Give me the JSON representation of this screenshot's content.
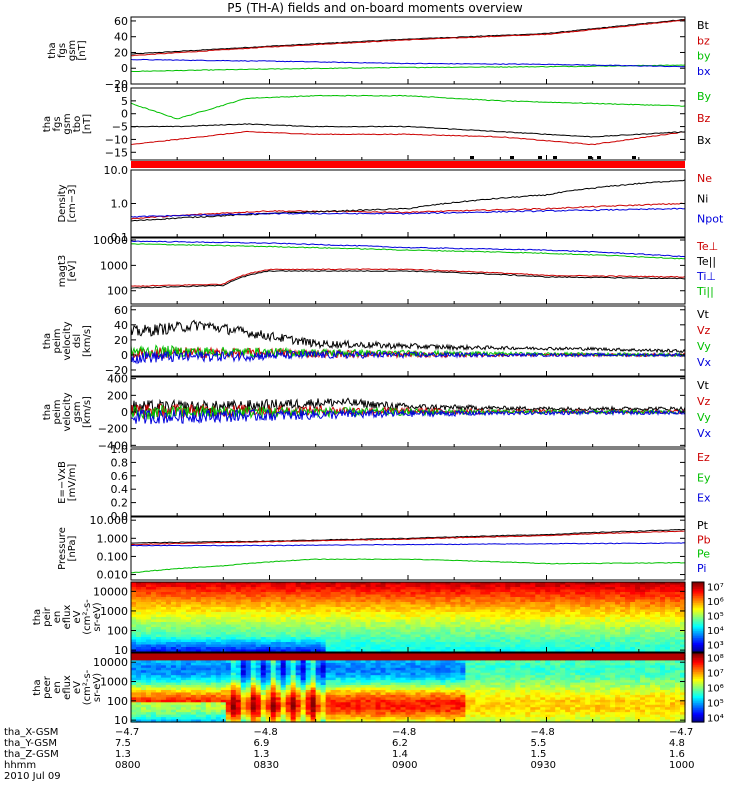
{
  "title": "P5 (TH-A) fields and on-board moments overview",
  "chart_data": {
    "type": "line",
    "x_ticks": [
      "0800",
      "0830",
      "0900",
      "0930",
      "1000"
    ],
    "x_range": [
      "08:00",
      "10:00"
    ],
    "panels": [
      {
        "id": "fgs-gsm",
        "type": "line",
        "ylabel": [
          "tha",
          "fgs",
          "gsm",
          "[nT]"
        ],
        "ylim": [
          -20,
          65
        ],
        "yticks": [
          "60",
          "40",
          "20",
          "0",
          "−20"
        ],
        "ytick_values": [
          60,
          40,
          20,
          0,
          -20
        ],
        "log": false,
        "series": [
          {
            "name": "Bt",
            "color": "#000000",
            "x": [
              0,
              30,
              60,
              90,
              120
            ],
            "values": [
              18,
              28,
              37,
              44,
              62
            ]
          },
          {
            "name": "bz",
            "color": "#cc0000",
            "x": [
              0,
              30,
              60,
              90,
              120
            ],
            "values": [
              16,
              27,
              36,
              43,
              61
            ]
          },
          {
            "name": "by",
            "color": "#00c000",
            "x": [
              0,
              30,
              60,
              90,
              120
            ],
            "values": [
              -4,
              -1,
              1,
              2,
              4
            ]
          },
          {
            "name": "bx",
            "color": "#0000dd",
            "x": [
              0,
              30,
              60,
              90,
              120
            ],
            "values": [
              11,
              9,
              6,
              5,
              2
            ]
          }
        ]
      },
      {
        "id": "fgs-gsm-tbo",
        "type": "line",
        "ylabel": [
          "tha",
          "fgs",
          "gsm",
          "tbo",
          "[nT]"
        ],
        "ylim": [
          -18,
          10
        ],
        "yticks": [
          "10",
          "5",
          "0",
          "−5",
          "−10",
          "−15"
        ],
        "ytick_values": [
          10,
          5,
          0,
          -5,
          -10,
          -15
        ],
        "log": false,
        "series": [
          {
            "name": "By",
            "color": "#00c000",
            "x": [
              0,
              10,
              25,
              40,
              60,
              80,
              100,
              120
            ],
            "values": [
              4,
              -2,
              6,
              7,
              7,
              5,
              4,
              3
            ]
          },
          {
            "name": "Bz",
            "color": "#cc0000",
            "x": [
              0,
              10,
              25,
              40,
              60,
              80,
              100,
              120
            ],
            "values": [
              -12,
              -10,
              -7,
              -8,
              -8,
              -9,
              -12,
              -7
            ]
          },
          {
            "name": "Bx",
            "color": "#000000",
            "x": [
              0,
              10,
              25,
              40,
              60,
              80,
              100,
              120
            ],
            "values": [
              -5,
              -5,
              -4,
              -5,
              -5,
              -7,
              -9,
              -7
            ]
          }
        ]
      },
      {
        "id": "density",
        "type": "line",
        "ylabel": [
          "Density",
          "[cm−3]"
        ],
        "ylim": [
          0.1,
          10
        ],
        "yticks": [
          "10.0",
          "1.0",
          "0.1"
        ],
        "ytick_values": [
          10,
          1,
          0.1
        ],
        "log": true,
        "series": [
          {
            "name": "Ne",
            "color": "#cc0000",
            "x": [
              0,
              30,
              60,
              90,
              120
            ],
            "values": [
              0.35,
              0.6,
              0.55,
              0.7,
              1.0
            ]
          },
          {
            "name": "Ni",
            "color": "#000000",
            "x": [
              0,
              30,
              60,
              90,
              120
            ],
            "values": [
              0.3,
              0.5,
              0.7,
              1.8,
              5.0
            ]
          },
          {
            "name": "Npot",
            "color": "#0000dd",
            "x": [
              0,
              30,
              60,
              90,
              120
            ],
            "values": [
              0.4,
              0.5,
              0.5,
              0.6,
              0.7
            ]
          }
        ]
      },
      {
        "id": "temperature",
        "type": "line",
        "ylabel": [
          "magt3",
          "[eV]"
        ],
        "ylim": [
          30,
          12000
        ],
        "yticks": [
          "10000",
          "1000",
          "100"
        ],
        "ytick_values": [
          10000,
          1000,
          100
        ],
        "log": true,
        "series": [
          {
            "name": "Te⊥",
            "color": "#cc0000",
            "x": [
              0,
              20,
              30,
              60,
              90,
              120
            ],
            "values": [
              150,
              180,
              700,
              700,
              400,
              350
            ]
          },
          {
            "name": "Te||",
            "color": "#000000",
            "x": [
              0,
              20,
              30,
              60,
              90,
              120
            ],
            "values": [
              130,
              160,
              600,
              600,
              350,
              300
            ]
          },
          {
            "name": "Ti⊥",
            "color": "#0000dd",
            "x": [
              0,
              30,
              60,
              90,
              120
            ],
            "values": [
              9000,
              7500,
              5000,
              4000,
              2200
            ]
          },
          {
            "name": "Ti||",
            "color": "#00c000",
            "x": [
              0,
              30,
              60,
              90,
              120
            ],
            "values": [
              7000,
              5500,
              4000,
              3000,
              1800
            ]
          }
        ]
      },
      {
        "id": "peim-velocity-dsl",
        "type": "line",
        "ylabel": [
          "tha",
          "peim",
          "velocity",
          "dsl",
          "[km/s]"
        ],
        "ylim": [
          -28,
          65
        ],
        "yticks": [
          "60",
          "40",
          "20",
          "0",
          "−20"
        ],
        "ytick_values": [
          60,
          40,
          20,
          0,
          -20
        ],
        "log": false,
        "series": [
          {
            "name": "Vt",
            "color": "#000000",
            "x": [
              0,
              15,
              40,
              70,
              100,
              120
            ],
            "values": [
              30,
              40,
              15,
              10,
              8,
              5
            ]
          },
          {
            "name": "Vz",
            "color": "#cc0000",
            "x": [
              0,
              15,
              40,
              70,
              100,
              120
            ],
            "values": [
              2,
              3,
              2,
              0,
              0,
              0
            ]
          },
          {
            "name": "Vy",
            "color": "#00c000",
            "x": [
              0,
              15,
              40,
              70,
              100,
              120
            ],
            "values": [
              5,
              4,
              3,
              2,
              1,
              0
            ]
          },
          {
            "name": "Vx",
            "color": "#0000dd",
            "x": [
              0,
              15,
              40,
              70,
              100,
              120
            ],
            "values": [
              -3,
              -2,
              0,
              0,
              0,
              0
            ]
          }
        ]
      },
      {
        "id": "peim-velocity-gsm",
        "type": "line",
        "ylabel": [
          "tha",
          "peim",
          "velocity",
          "gsm",
          "[km/s]"
        ],
        "ylim": [
          -420,
          420
        ],
        "yticks": [
          "400",
          "200",
          "0",
          "−200",
          "−400"
        ],
        "ytick_values": [
          400,
          200,
          0,
          -200,
          -400
        ],
        "log": false,
        "series": [
          {
            "name": "Vt",
            "color": "#000000",
            "x": [
              0,
              20,
              45,
              60,
              90,
              120
            ],
            "values": [
              50,
              60,
              120,
              60,
              40,
              40
            ]
          },
          {
            "name": "Vz",
            "color": "#cc0000",
            "x": [
              0,
              30,
              60,
              90,
              120
            ],
            "values": [
              10,
              20,
              10,
              5,
              5
            ]
          },
          {
            "name": "Vy",
            "color": "#00c000",
            "x": [
              0,
              30,
              60,
              90,
              120
            ],
            "values": [
              -10,
              0,
              0,
              0,
              0
            ]
          },
          {
            "name": "Vx",
            "color": "#0000dd",
            "x": [
              0,
              30,
              60,
              90,
              120
            ],
            "values": [
              -60,
              -40,
              -20,
              -10,
              -5
            ]
          }
        ]
      },
      {
        "id": "efield",
        "type": "line",
        "ylabel": [
          "E=−VxB",
          "[mV/m]"
        ],
        "ylim": [
          0,
          1
        ],
        "yticks": [
          "1.0",
          "0.8",
          "0.6",
          "0.4",
          "0.2",
          "0.0"
        ],
        "ytick_values": [
          1,
          0.8,
          0.6,
          0.4,
          0.2,
          0
        ],
        "log": false,
        "series": [
          {
            "name": "Ez",
            "color": "#cc0000",
            "x": [],
            "values": []
          },
          {
            "name": "Ey",
            "color": "#00c000",
            "x": [],
            "values": []
          },
          {
            "name": "Ex",
            "color": "#0000dd",
            "x": [],
            "values": []
          }
        ]
      },
      {
        "id": "pressure",
        "type": "line",
        "ylabel": [
          "Pressure",
          "[nPa]"
        ],
        "ylim": [
          0.005,
          15
        ],
        "yticks": [
          "10.000",
          "1.000",
          "0.100",
          "0.010"
        ],
        "ytick_values": [
          10,
          1,
          0.1,
          0.01
        ],
        "log": true,
        "series": [
          {
            "name": "Pt",
            "color": "#000000",
            "x": [
              0,
              30,
              60,
              90,
              120
            ],
            "values": [
              0.55,
              0.7,
              1.0,
              1.6,
              3.0
            ]
          },
          {
            "name": "Pb",
            "color": "#cc0000",
            "x": [
              0,
              30,
              60,
              90,
              120
            ],
            "values": [
              0.45,
              0.65,
              0.9,
              1.4,
              2.5
            ]
          },
          {
            "name": "Pe",
            "color": "#00c000",
            "x": [
              0,
              20,
              40,
              60,
              90,
              120
            ],
            "values": [
              0.012,
              0.03,
              0.07,
              0.07,
              0.04,
              0.045
            ]
          },
          {
            "name": "Pi",
            "color": "#0000dd",
            "x": [
              0,
              30,
              60,
              90,
              120
            ],
            "values": [
              0.4,
              0.4,
              0.45,
              0.5,
              0.55
            ]
          }
        ]
      },
      {
        "id": "peir-en-eflux",
        "type": "heatmap",
        "ylabel": [
          "tha",
          "peir",
          "en",
          "eflux",
          "eV",
          "(cm²-s-",
          "sr-eV)"
        ],
        "ylim": [
          8,
          30000
        ],
        "yticks": [
          "10000",
          "1000",
          "100",
          "10"
        ],
        "ytick_values": [
          10000,
          1000,
          100,
          10
        ],
        "log": true,
        "colorbar_ticks": [
          "10⁷",
          "10⁶",
          "10⁵",
          "10⁴",
          "10³"
        ],
        "colorbar_range": [
          2.5,
          7.3
        ],
        "colorbar_tick_values": [
          7,
          6,
          5,
          4,
          3
        ]
      },
      {
        "id": "peer-en-eflux",
        "type": "heatmap",
        "ylabel": [
          "tha",
          "peer",
          "en",
          "eflux",
          "eV",
          "(cm²-s-",
          "sr-eV)"
        ],
        "ylim": [
          8,
          30000
        ],
        "yticks": [
          "10000",
          "1000",
          "100",
          "10"
        ],
        "ytick_values": [
          10000,
          1000,
          100,
          10
        ],
        "log": true,
        "colorbar_ticks": [
          "10⁸",
          "10⁷",
          "10⁶",
          "10⁵",
          "10⁴"
        ],
        "colorbar_range": [
          3.7,
          8.3
        ],
        "colorbar_tick_values": [
          8,
          7,
          6,
          5,
          4
        ]
      }
    ],
    "ephemeris": {
      "labels": [
        "tha_X-GSM",
        "tha_Y-GSM",
        "tha_Z-GSM",
        "hhmm",
        "2010 Jul 09"
      ],
      "rows": [
        [
          "−4.7",
          "−4.8",
          "−4.8",
          "−4.8",
          "−4.7"
        ],
        [
          "7.5",
          "6.9",
          "6.2",
          "5.5",
          "4.8"
        ],
        [
          "1.3",
          "1.3",
          "1.4",
          "1.5",
          "1.6"
        ],
        [
          "0800",
          "0830",
          "0900",
          "0930",
          "1000"
        ]
      ]
    }
  }
}
